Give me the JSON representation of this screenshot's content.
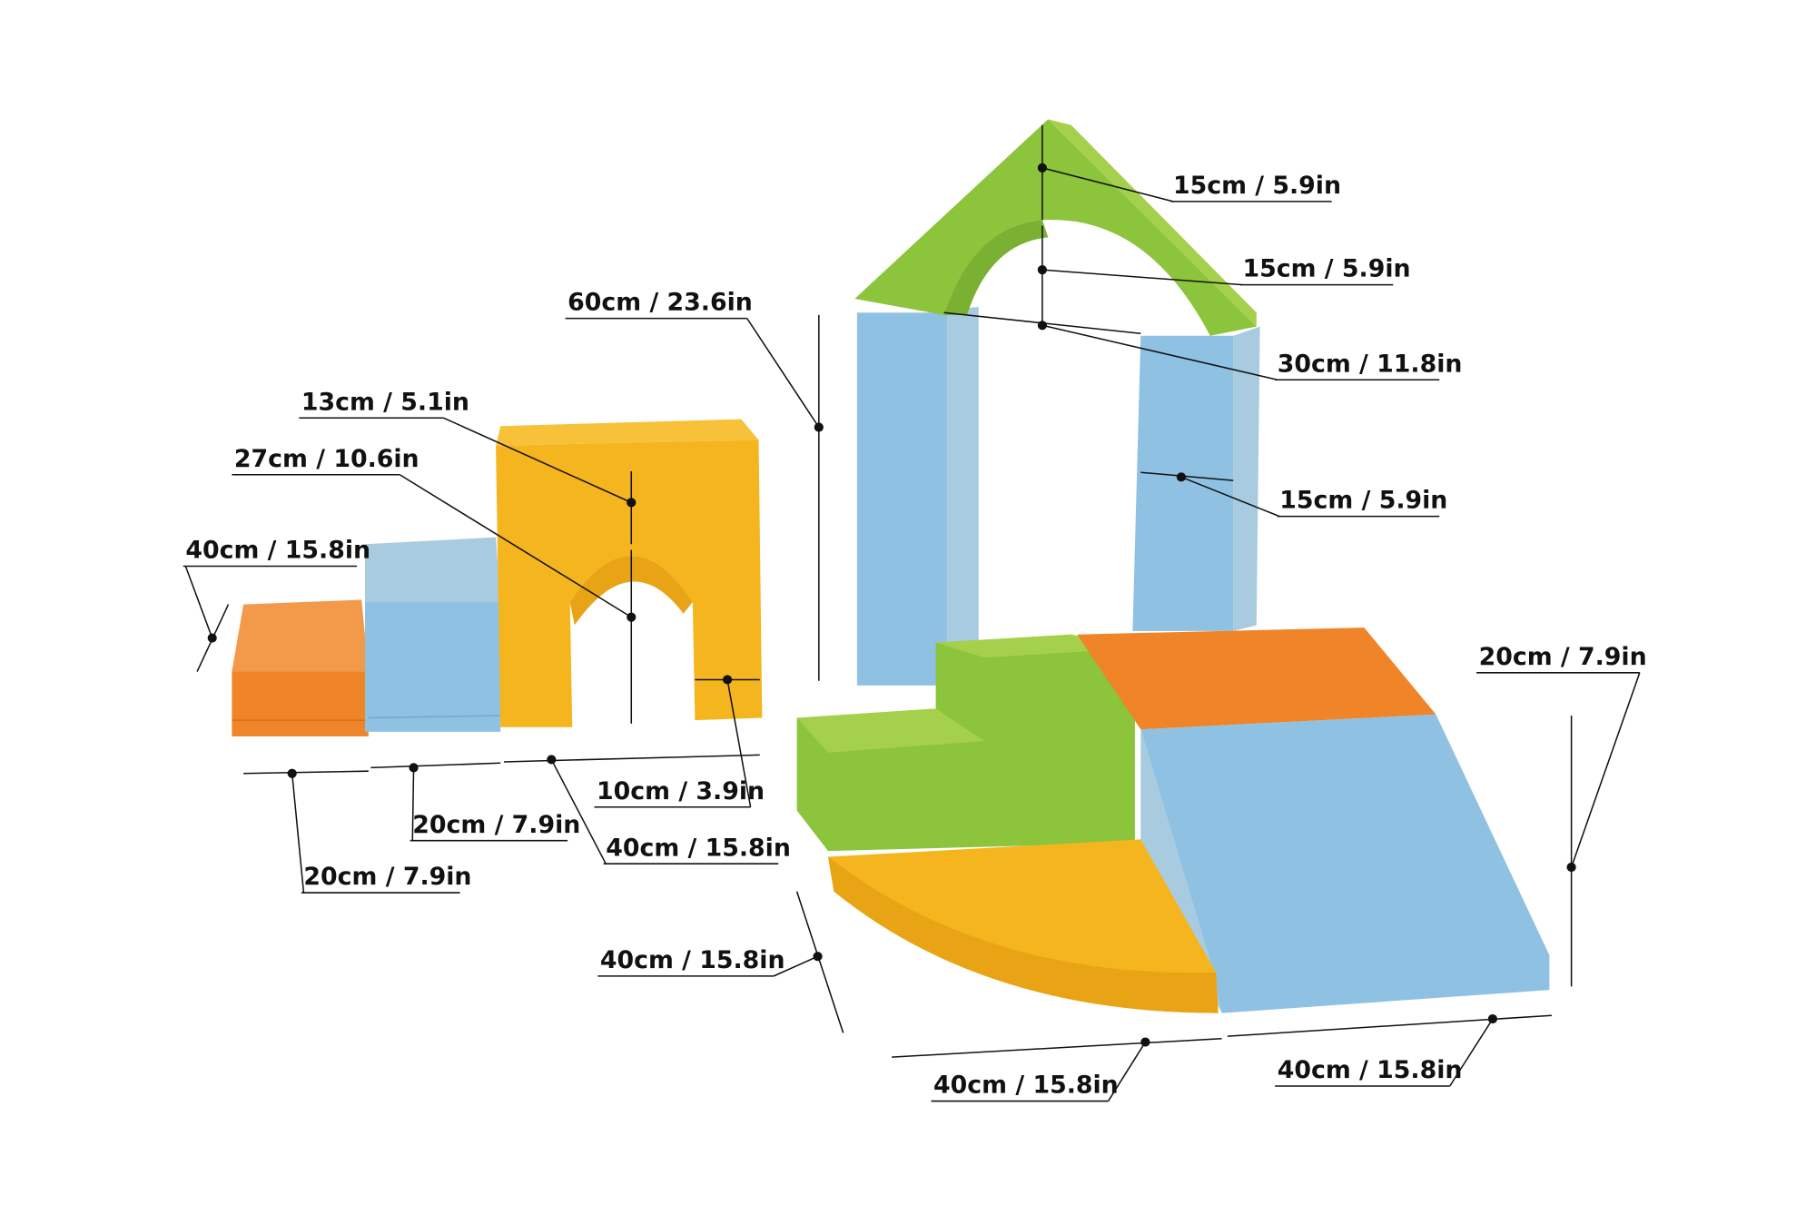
{
  "colors": {
    "green": "#8cc43c",
    "green_light": "#a5d04c",
    "blue": "#8fc1e2",
    "blue_side": "#a9cbe0",
    "orange": "#ef8528",
    "yellow": "#f4b51e",
    "yellow_dark": "#e8a414"
  },
  "dimension_labels": [
    {
      "name": "roof-height-upper",
      "text": "15cm / 5.9in"
    },
    {
      "name": "roof-height-arch",
      "text": "15cm / 5.9in"
    },
    {
      "name": "roof-arch-width",
      "text": "30cm / 11.8in"
    },
    {
      "name": "pillar-depth",
      "text": "15cm / 5.9in"
    },
    {
      "name": "pillar-height",
      "text": "60cm / 23.6in"
    },
    {
      "name": "tunnel-top-thickness",
      "text": "13cm / 5.1in"
    },
    {
      "name": "tunnel-opening-height",
      "text": "27cm / 10.6in"
    },
    {
      "name": "small-step-depth",
      "text": "40cm / 15.8in"
    },
    {
      "name": "tunnel-leg-width",
      "text": "10cm / 3.9in"
    },
    {
      "name": "blue-step-width",
      "text": "20cm / 7.9in"
    },
    {
      "name": "tunnel-width",
      "text": "40cm / 15.8in"
    },
    {
      "name": "orange-step-width",
      "text": "20cm / 7.9in"
    },
    {
      "name": "ramp-height",
      "text": "20cm / 7.9in"
    },
    {
      "name": "quarter-depth",
      "text": "40cm / 15.8in"
    },
    {
      "name": "quarter-width",
      "text": "40cm / 15.8in"
    },
    {
      "name": "ramp-width",
      "text": "40cm / 15.8in"
    }
  ]
}
